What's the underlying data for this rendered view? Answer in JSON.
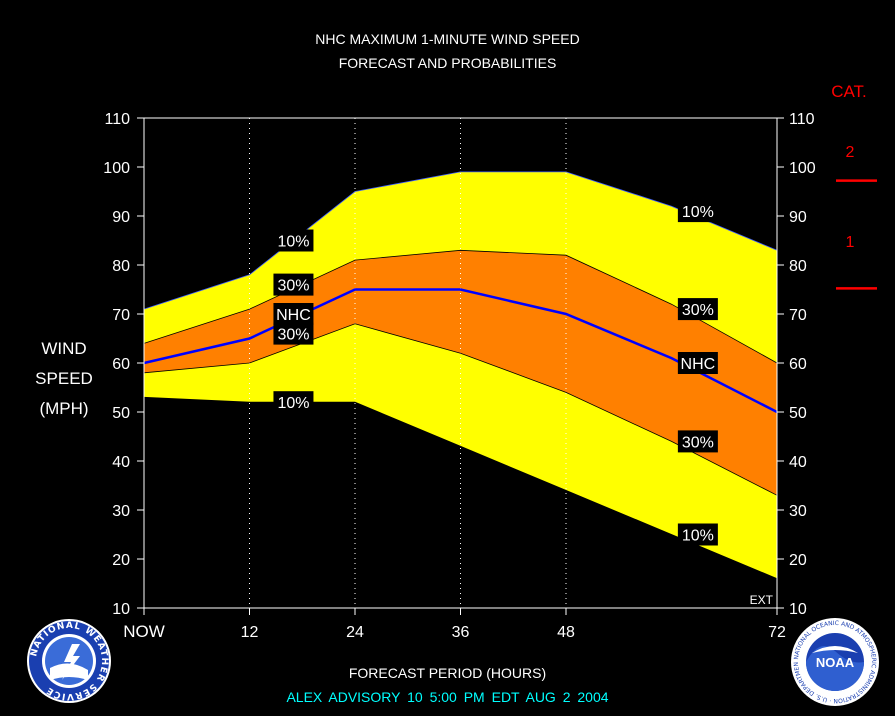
{
  "title": {
    "line1": "NHC MAXIMUM 1-MINUTE WIND SPEED",
    "line2": "FORECAST AND PROBABILITIES"
  },
  "y_axis_label": {
    "line1": "WIND",
    "line2": "SPEED",
    "line3": "(MPH)"
  },
  "x_axis_title": "FORECAST PERIOD (HOURS)",
  "advisory_text": "ALEX   ADVISORY  10 5:00  PM  EDT  AUG  2  2004",
  "category_legend": {
    "title": "CAT.",
    "items": [
      {
        "label": "2",
        "threshold": 96
      },
      {
        "label": "1",
        "threshold": 74
      }
    ],
    "color": "#ff0000"
  },
  "logos": {
    "left": "nws-logo",
    "left_text": "NATIONAL WEATHER SERVICE",
    "right": "noaa-logo",
    "right_text": "NOAA",
    "right_ring_text": "NATIONAL OCEANIC AND ATMOSPHERIC ADMINISTRATION · U.S. DEPARTMENT OF COMMERCE"
  },
  "colors": {
    "background": "#000000",
    "band_10": "#ffff00",
    "band_30": "#ff8000",
    "nhc_line": "#0000ff",
    "cat_lines": "#ff0000",
    "advisory": "#00ffff"
  },
  "chart_data": {
    "type": "area",
    "title": "NHC MAXIMUM 1-MINUTE WIND SPEED FORECAST AND PROBABILITIES",
    "xlabel": "FORECAST PERIOD (HOURS)",
    "ylabel": "WIND SPEED (MPH)",
    "xlim": [
      0,
      72
    ],
    "ylim": [
      10,
      110
    ],
    "x_ticks": [
      {
        "value": 0,
        "label": "NOW"
      },
      {
        "value": 12,
        "label": "12"
      },
      {
        "value": 24,
        "label": "24"
      },
      {
        "value": 36,
        "label": "36"
      },
      {
        "value": 48,
        "label": "48"
      },
      {
        "value": 72,
        "label": "72"
      }
    ],
    "y_ticks": [
      10,
      20,
      30,
      40,
      50,
      60,
      70,
      80,
      90,
      100,
      110
    ],
    "ext_label": "EXT",
    "x": [
      0,
      12,
      24,
      36,
      48,
      60,
      72
    ],
    "series": [
      {
        "name": "10%",
        "role": "upper",
        "values": [
          71,
          78,
          95,
          99,
          99,
          92,
          83
        ]
      },
      {
        "name": "30%",
        "role": "upper",
        "values": [
          64,
          71,
          81,
          83,
          82,
          72,
          60
        ]
      },
      {
        "name": "NHC",
        "role": "forecast",
        "values": [
          60,
          65,
          75,
          75,
          70,
          61,
          50
        ]
      },
      {
        "name": "30%",
        "role": "lower",
        "values": [
          58,
          60,
          68,
          62,
          54,
          44,
          33
        ]
      },
      {
        "name": "10%",
        "role": "lower",
        "values": [
          53,
          52,
          52,
          43,
          34,
          25,
          16
        ]
      }
    ],
    "band_labels": [
      {
        "text": "10%",
        "x": 17,
        "y": 85
      },
      {
        "text": "30%",
        "x": 17,
        "y": 76
      },
      {
        "text": "NHC",
        "x": 17,
        "y": 70
      },
      {
        "text": "30%",
        "x": 17,
        "y": 66
      },
      {
        "text": "10%",
        "x": 17,
        "y": 52
      },
      {
        "text": "10%",
        "x": 63,
        "y": 91
      },
      {
        "text": "30%",
        "x": 63,
        "y": 71
      },
      {
        "text": "NHC",
        "x": 63,
        "y": 60
      },
      {
        "text": "30%",
        "x": 63,
        "y": 44
      },
      {
        "text": "10%",
        "x": 63,
        "y": 25
      }
    ],
    "grid": "vertical dotted at 12, 24, 36, 48",
    "legend": "none"
  }
}
